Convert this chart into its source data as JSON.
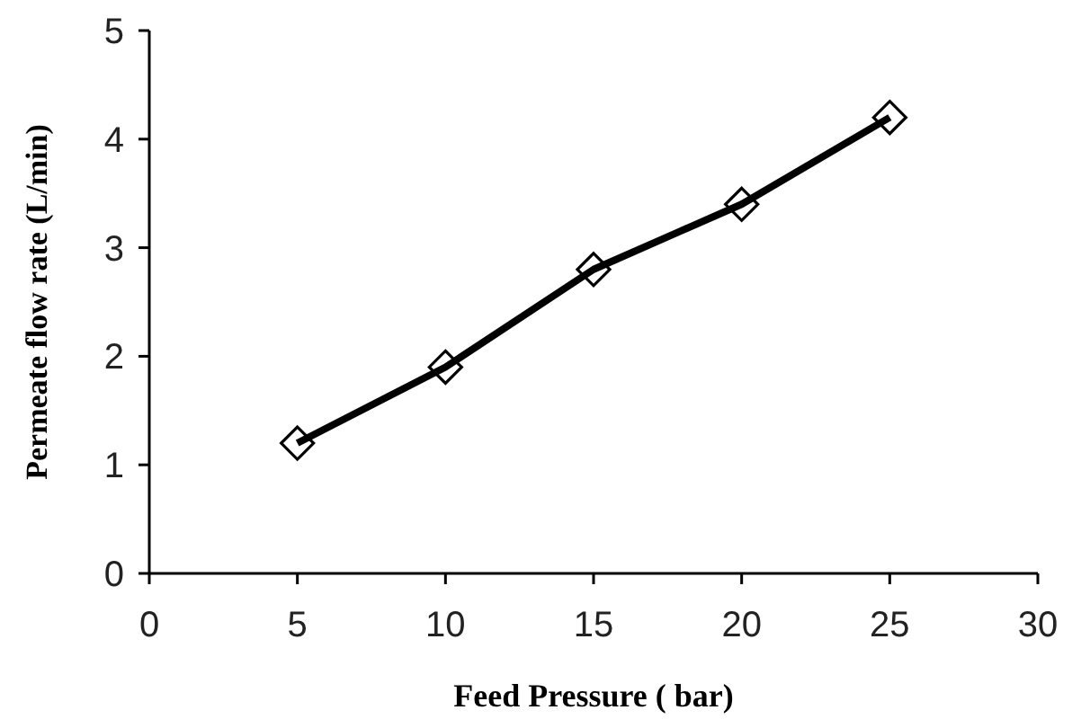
{
  "chart_data": {
    "type": "line",
    "xlabel": "Feed Pressure ( bar)",
    "ylabel": "Permeate flow rate (L/min)",
    "x": [
      5,
      10,
      15,
      20,
      25
    ],
    "series": [
      {
        "color": "#000000",
        "values": [
          1.2,
          1.9,
          2.8,
          3.4,
          4.2
        ]
      }
    ],
    "xlim": [
      0,
      30
    ],
    "xticks": [
      0,
      5,
      10,
      15,
      20,
      25,
      30
    ],
    "ylim": [
      0,
      5
    ],
    "yticks": [
      0,
      1,
      2,
      3,
      4,
      5
    ],
    "marker": "diamond",
    "line_style": "solid"
  }
}
